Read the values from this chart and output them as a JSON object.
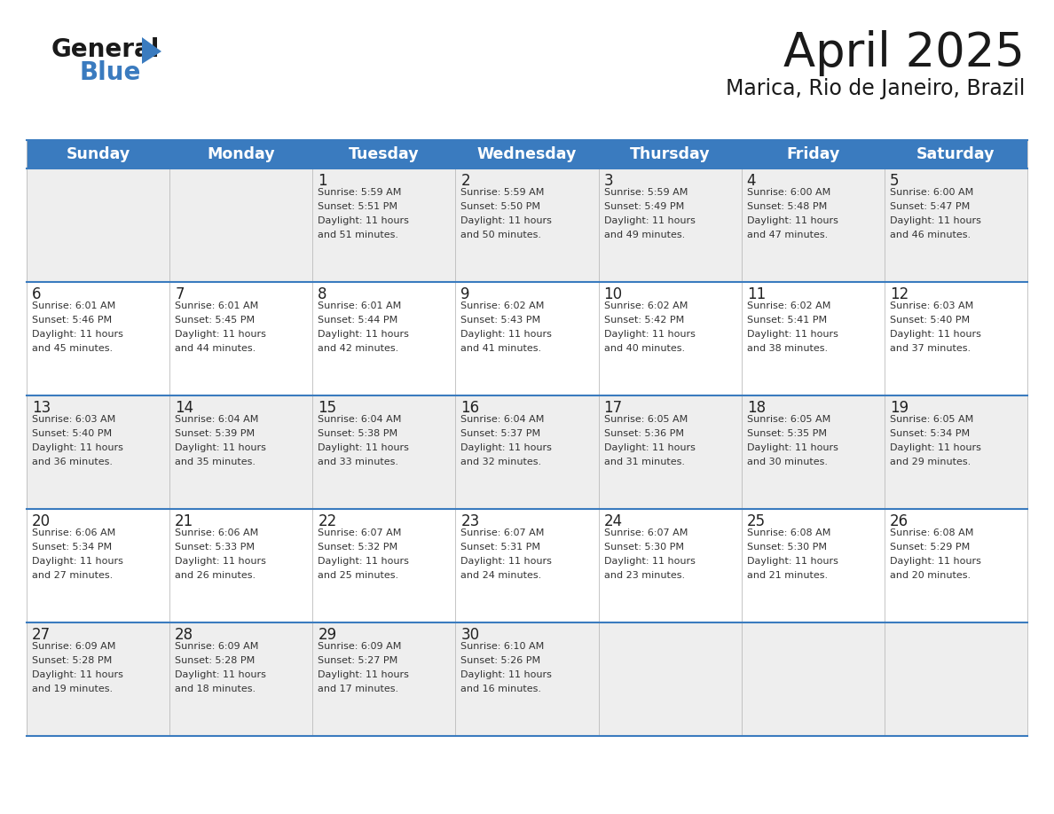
{
  "title": "April 2025",
  "subtitle": "Marica, Rio de Janeiro, Brazil",
  "days_of_week": [
    "Sunday",
    "Monday",
    "Tuesday",
    "Wednesday",
    "Thursday",
    "Friday",
    "Saturday"
  ],
  "header_bg": "#3a7bbf",
  "header_text": "#ffffff",
  "row_bg_odd": "#eeeeee",
  "row_bg_even": "#ffffff",
  "cell_text_color": "#333333",
  "border_color": "#3a7bbf",
  "logo_general_color": "#1a1a1a",
  "logo_blue_color": "#3a7bbf",
  "logo_triangle_color": "#3a7bbf",
  "weeks": [
    [
      {
        "day": "",
        "sunrise": "",
        "sunset": "",
        "daylight_hours": 0,
        "daylight_minutes": 0
      },
      {
        "day": "",
        "sunrise": "",
        "sunset": "",
        "daylight_hours": 0,
        "daylight_minutes": 0
      },
      {
        "day": "1",
        "sunrise": "5:59 AM",
        "sunset": "5:51 PM",
        "daylight_hours": 11,
        "daylight_minutes": 51
      },
      {
        "day": "2",
        "sunrise": "5:59 AM",
        "sunset": "5:50 PM",
        "daylight_hours": 11,
        "daylight_minutes": 50
      },
      {
        "day": "3",
        "sunrise": "5:59 AM",
        "sunset": "5:49 PM",
        "daylight_hours": 11,
        "daylight_minutes": 49
      },
      {
        "day": "4",
        "sunrise": "6:00 AM",
        "sunset": "5:48 PM",
        "daylight_hours": 11,
        "daylight_minutes": 47
      },
      {
        "day": "5",
        "sunrise": "6:00 AM",
        "sunset": "5:47 PM",
        "daylight_hours": 11,
        "daylight_minutes": 46
      }
    ],
    [
      {
        "day": "6",
        "sunrise": "6:01 AM",
        "sunset": "5:46 PM",
        "daylight_hours": 11,
        "daylight_minutes": 45
      },
      {
        "day": "7",
        "sunrise": "6:01 AM",
        "sunset": "5:45 PM",
        "daylight_hours": 11,
        "daylight_minutes": 44
      },
      {
        "day": "8",
        "sunrise": "6:01 AM",
        "sunset": "5:44 PM",
        "daylight_hours": 11,
        "daylight_minutes": 42
      },
      {
        "day": "9",
        "sunrise": "6:02 AM",
        "sunset": "5:43 PM",
        "daylight_hours": 11,
        "daylight_minutes": 41
      },
      {
        "day": "10",
        "sunrise": "6:02 AM",
        "sunset": "5:42 PM",
        "daylight_hours": 11,
        "daylight_minutes": 40
      },
      {
        "day": "11",
        "sunrise": "6:02 AM",
        "sunset": "5:41 PM",
        "daylight_hours": 11,
        "daylight_minutes": 38
      },
      {
        "day": "12",
        "sunrise": "6:03 AM",
        "sunset": "5:40 PM",
        "daylight_hours": 11,
        "daylight_minutes": 37
      }
    ],
    [
      {
        "day": "13",
        "sunrise": "6:03 AM",
        "sunset": "5:40 PM",
        "daylight_hours": 11,
        "daylight_minutes": 36
      },
      {
        "day": "14",
        "sunrise": "6:04 AM",
        "sunset": "5:39 PM",
        "daylight_hours": 11,
        "daylight_minutes": 35
      },
      {
        "day": "15",
        "sunrise": "6:04 AM",
        "sunset": "5:38 PM",
        "daylight_hours": 11,
        "daylight_minutes": 33
      },
      {
        "day": "16",
        "sunrise": "6:04 AM",
        "sunset": "5:37 PM",
        "daylight_hours": 11,
        "daylight_minutes": 32
      },
      {
        "day": "17",
        "sunrise": "6:05 AM",
        "sunset": "5:36 PM",
        "daylight_hours": 11,
        "daylight_minutes": 31
      },
      {
        "day": "18",
        "sunrise": "6:05 AM",
        "sunset": "5:35 PM",
        "daylight_hours": 11,
        "daylight_minutes": 30
      },
      {
        "day": "19",
        "sunrise": "6:05 AM",
        "sunset": "5:34 PM",
        "daylight_hours": 11,
        "daylight_minutes": 29
      }
    ],
    [
      {
        "day": "20",
        "sunrise": "6:06 AM",
        "sunset": "5:34 PM",
        "daylight_hours": 11,
        "daylight_minutes": 27
      },
      {
        "day": "21",
        "sunrise": "6:06 AM",
        "sunset": "5:33 PM",
        "daylight_hours": 11,
        "daylight_minutes": 26
      },
      {
        "day": "22",
        "sunrise": "6:07 AM",
        "sunset": "5:32 PM",
        "daylight_hours": 11,
        "daylight_minutes": 25
      },
      {
        "day": "23",
        "sunrise": "6:07 AM",
        "sunset": "5:31 PM",
        "daylight_hours": 11,
        "daylight_minutes": 24
      },
      {
        "day": "24",
        "sunrise": "6:07 AM",
        "sunset": "5:30 PM",
        "daylight_hours": 11,
        "daylight_minutes": 23
      },
      {
        "day": "25",
        "sunrise": "6:08 AM",
        "sunset": "5:30 PM",
        "daylight_hours": 11,
        "daylight_minutes": 21
      },
      {
        "day": "26",
        "sunrise": "6:08 AM",
        "sunset": "5:29 PM",
        "daylight_hours": 11,
        "daylight_minutes": 20
      }
    ],
    [
      {
        "day": "27",
        "sunrise": "6:09 AM",
        "sunset": "5:28 PM",
        "daylight_hours": 11,
        "daylight_minutes": 19
      },
      {
        "day": "28",
        "sunrise": "6:09 AM",
        "sunset": "5:28 PM",
        "daylight_hours": 11,
        "daylight_minutes": 18
      },
      {
        "day": "29",
        "sunrise": "6:09 AM",
        "sunset": "5:27 PM",
        "daylight_hours": 11,
        "daylight_minutes": 17
      },
      {
        "day": "30",
        "sunrise": "6:10 AM",
        "sunset": "5:26 PM",
        "daylight_hours": 11,
        "daylight_minutes": 16
      },
      {
        "day": "",
        "sunrise": "",
        "sunset": "",
        "daylight_hours": 0,
        "daylight_minutes": 0
      },
      {
        "day": "",
        "sunrise": "",
        "sunset": "",
        "daylight_hours": 0,
        "daylight_minutes": 0
      },
      {
        "day": "",
        "sunrise": "",
        "sunset": "",
        "daylight_hours": 0,
        "daylight_minutes": 0
      }
    ]
  ]
}
